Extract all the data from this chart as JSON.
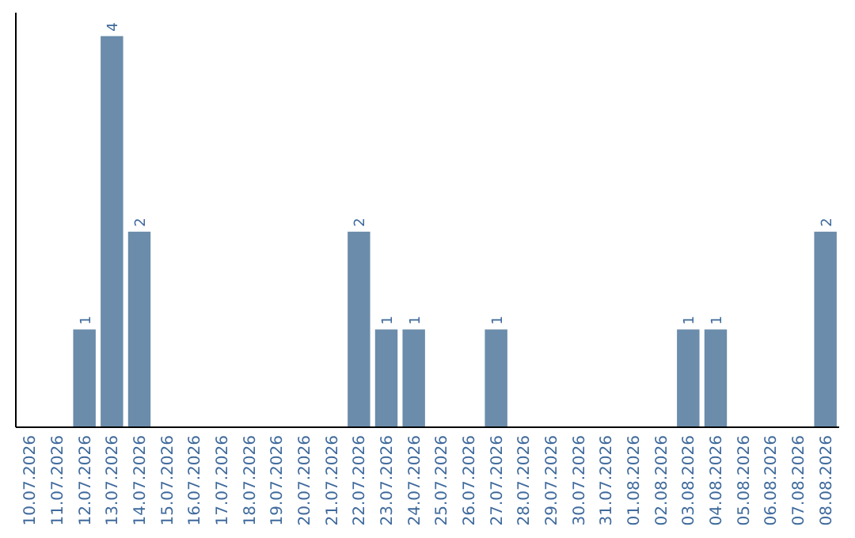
{
  "chart_data": {
    "type": "bar",
    "categories": [
      "10.07.2026",
      "11.07.2026",
      "12.07.2026",
      "13.07.2026",
      "14.07.2026",
      "15.07.2026",
      "16.07.2026",
      "17.07.2026",
      "18.07.2026",
      "19.07.2026",
      "20.07.2026",
      "21.07.2026",
      "22.07.2026",
      "23.07.2026",
      "24.07.2026",
      "25.07.2026",
      "26.07.2026",
      "27.07.2026",
      "28.07.2026",
      "29.07.2026",
      "30.07.2026",
      "31.07.2026",
      "01.08.2026",
      "02.08.2026",
      "03.08.2026",
      "04.08.2026",
      "05.08.2026",
      "06.08.2026",
      "07.08.2026",
      "08.08.2026"
    ],
    "values": [
      0,
      0,
      1,
      4,
      2,
      0,
      0,
      0,
      0,
      0,
      0,
      0,
      2,
      1,
      1,
      0,
      0,
      1,
      0,
      0,
      0,
      0,
      0,
      0,
      1,
      1,
      0,
      0,
      0,
      2
    ],
    "value_labels": [
      null,
      null,
      "1",
      "4",
      "2",
      null,
      null,
      null,
      null,
      null,
      null,
      null,
      "2",
      "1",
      "1",
      null,
      null,
      "1",
      null,
      null,
      null,
      null,
      null,
      null,
      "1",
      "1",
      null,
      null,
      null,
      "2"
    ],
    "color": "#6b8cab"
  }
}
